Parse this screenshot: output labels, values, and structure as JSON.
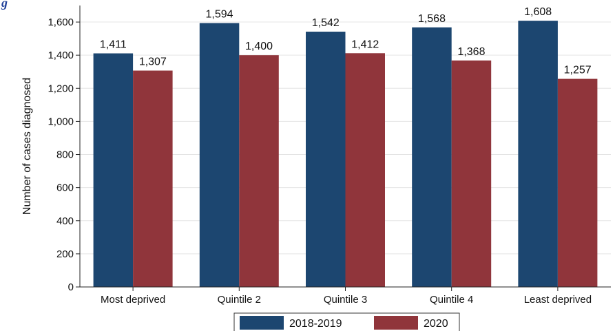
{
  "partial_heading": "g",
  "chart_data": {
    "type": "bar",
    "title": "",
    "xlabel": "",
    "ylabel": "Number of cases diagnosed",
    "categories": [
      "Most deprived",
      "Quintile 2",
      "Quintile 3",
      "Quintile 4",
      "Least deprived"
    ],
    "series": [
      {
        "name": "2018-2019",
        "color": "#1c4670",
        "values": [
          1411,
          1594,
          1542,
          1568,
          1608
        ],
        "labels": [
          "1,411",
          "1,594",
          "1,542",
          "1,568",
          "1,608"
        ]
      },
      {
        "name": "2020",
        "color": "#90353b",
        "values": [
          1307,
          1400,
          1412,
          1368,
          1257
        ],
        "labels": [
          "1,307",
          "1,400",
          "1,412",
          "1,368",
          "1,257"
        ]
      }
    ],
    "ylim": [
      0,
      1700
    ],
    "yticks": [
      0,
      200,
      400,
      600,
      800,
      1000,
      1200,
      1400,
      1600
    ],
    "ytick_labels": [
      "0",
      "200",
      "400",
      "600",
      "800",
      "1,000",
      "1,200",
      "1,400",
      "1,600"
    ],
    "grid": true,
    "legend_position": "bottom-center",
    "background": "#ffffff",
    "plot_background": "#ffffff"
  }
}
